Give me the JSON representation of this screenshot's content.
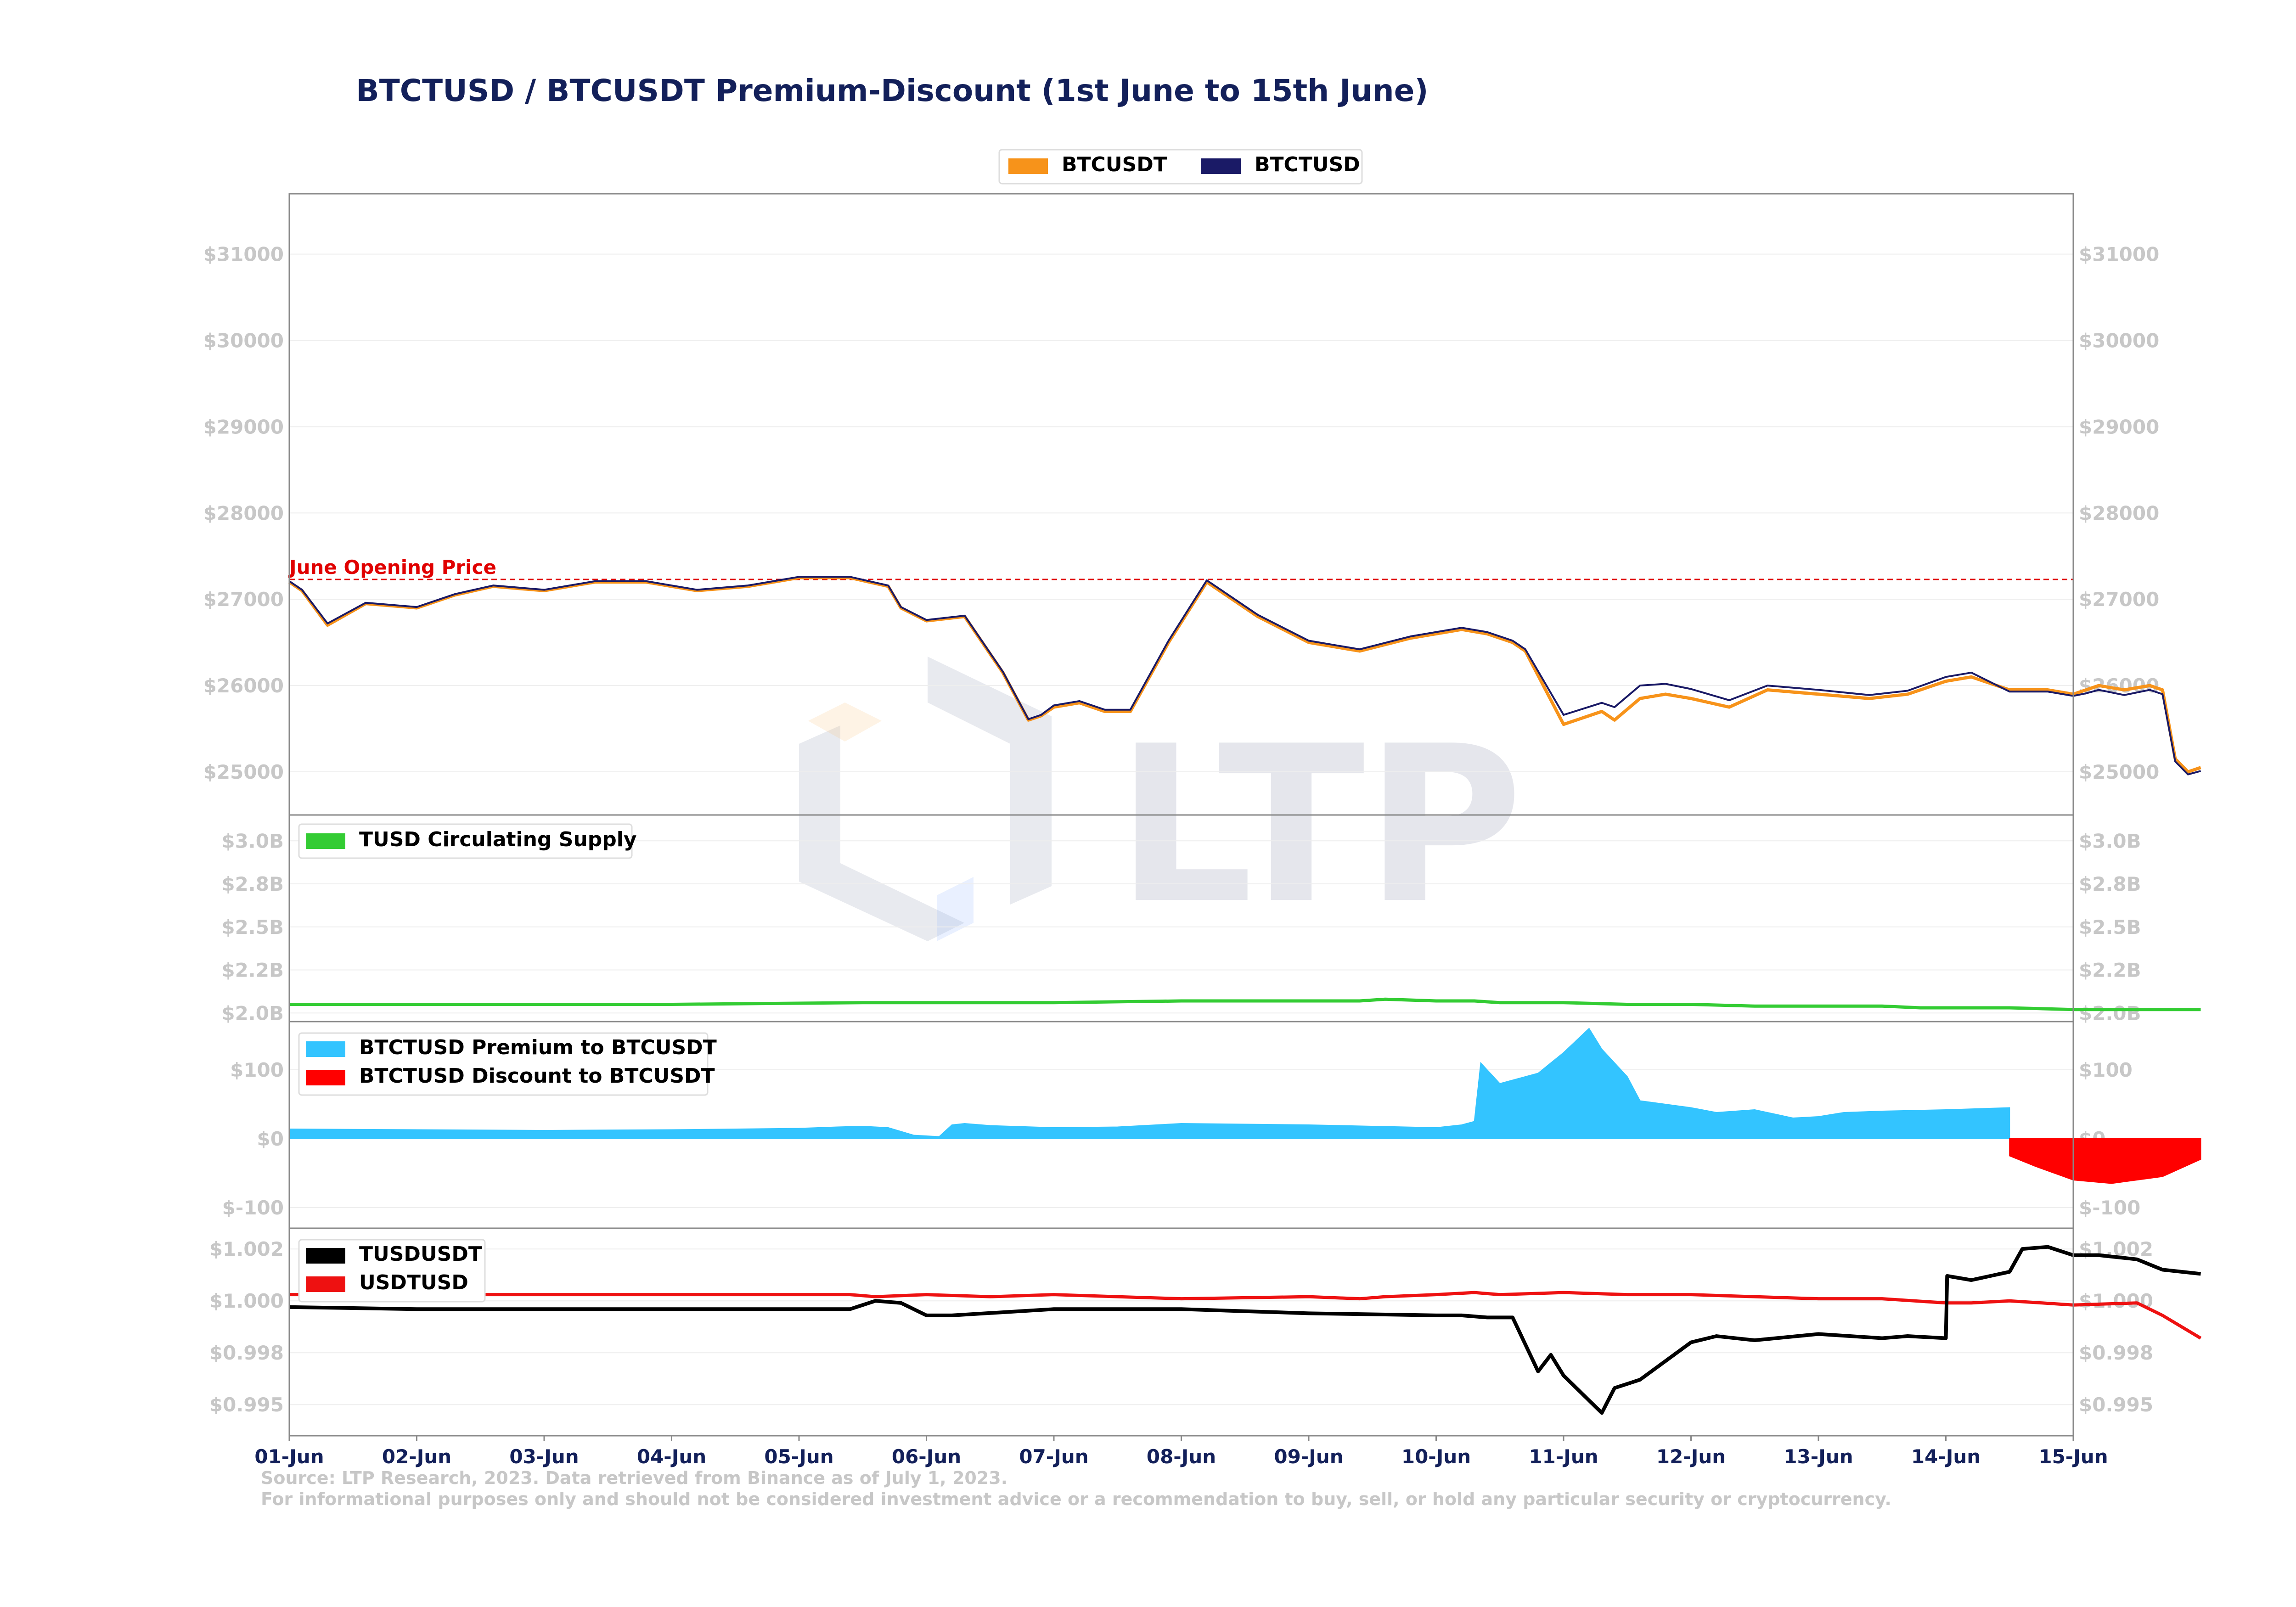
{
  "chart_data": {
    "type": "line",
    "title": "BTCTUSD / BTCUSDT Premium-Discount (1st June to 15th June)",
    "x_tick_labels": [
      "01-Jun",
      "02-Jun",
      "03-Jun",
      "04-Jun",
      "05-Jun",
      "06-Jun",
      "07-Jun",
      "08-Jun",
      "09-Jun",
      "10-Jun",
      "11-Jun",
      "12-Jun",
      "13-Jun",
      "14-Jun",
      "15-Jun"
    ],
    "xlim": [
      "2023-06-01",
      "2023-06-15"
    ],
    "colors": {
      "btcusdt": "#f7931a",
      "btctusd": "#1a1a66",
      "supply": "#33cc33",
      "premium": "#33c4ff",
      "discount": "#ff0000",
      "tusdusdt": "#000000",
      "usdtusd": "#ee1111",
      "title": "#13205a",
      "ticks": "#c7c7c7",
      "opening": "#e00000"
    },
    "watermark": "LTP",
    "panels": [
      {
        "id": "price",
        "ylim": [
          24500,
          31700
        ],
        "y_ticks": [
          25000,
          26000,
          27000,
          28000,
          29000,
          30000,
          31000
        ],
        "y_tick_labels": [
          "$25000",
          "$26000",
          "$27000",
          "$28000",
          "$29000",
          "$30000",
          "$31000"
        ],
        "legend": [
          "BTCUSDT",
          "BTCTUSD"
        ],
        "annotation": {
          "text": "June Opening Price",
          "value": 27230
        },
        "series": [
          {
            "name": "BTCUSDT",
            "x": [
              0,
              0.1,
              0.3,
              0.6,
              1.0,
              1.3,
              1.6,
              2.0,
              2.4,
              2.8,
              3.2,
              3.6,
              4.0,
              4.4,
              4.7,
              4.8,
              5.0,
              5.3,
              5.6,
              5.8,
              5.9,
              6.0,
              6.2,
              6.4,
              6.6,
              6.9,
              7.2,
              7.6,
              8.0,
              8.4,
              8.8,
              9.2,
              9.4,
              9.6,
              9.7,
              10.0,
              10.3,
              10.4,
              10.6,
              10.8,
              11.0,
              11.3,
              11.6,
              12.0,
              12.4,
              12.7,
              13.0,
              13.2,
              13.5,
              13.8,
              14.0,
              14.1,
              14.2,
              14.4,
              14.6,
              14.7,
              14.8,
              14.9,
              15.0
            ],
            "y": [
              27200,
              27100,
              26700,
              26950,
              26900,
              27050,
              27150,
              27100,
              27200,
              27200,
              27100,
              27150,
              27250,
              27250,
              27150,
              26900,
              26750,
              26800,
              26150,
              25600,
              25650,
              25750,
              25800,
              25700,
              25700,
              26500,
              27200,
              26800,
              26500,
              26400,
              26550,
              26650,
              26600,
              26500,
              26400,
              25550,
              25700,
              25600,
              25850,
              25900,
              25850,
              25750,
              25950,
              25900,
              25850,
              25900,
              26050,
              26100,
              25950,
              25950,
              25900,
              25950,
              26000,
              25950,
              26000,
              25950,
              25150,
              25000,
              25050
            ]
          },
          {
            "name": "BTCTUSD",
            "x": [
              0,
              0.1,
              0.3,
              0.6,
              1.0,
              1.3,
              1.6,
              2.0,
              2.4,
              2.8,
              3.2,
              3.6,
              4.0,
              4.4,
              4.7,
              4.8,
              5.0,
              5.3,
              5.6,
              5.8,
              5.9,
              6.0,
              6.2,
              6.4,
              6.6,
              6.9,
              7.2,
              7.6,
              8.0,
              8.4,
              8.8,
              9.2,
              9.4,
              9.6,
              9.7,
              10.0,
              10.3,
              10.4,
              10.6,
              10.8,
              11.0,
              11.3,
              11.6,
              12.0,
              12.4,
              12.7,
              13.0,
              13.2,
              13.5,
              13.8,
              14.0,
              14.1,
              14.2,
              14.4,
              14.6,
              14.7,
              14.8,
              14.9,
              15.0
            ],
            "y": [
              27210,
              27110,
              26720,
              26960,
              26910,
              27060,
              27160,
              27110,
              27210,
              27210,
              27110,
              27160,
              27260,
              27260,
              27160,
              26910,
              26760,
              26810,
              26160,
              25610,
              25660,
              25770,
              25820,
              25720,
              25720,
              26520,
              27220,
              26820,
              26520,
              26420,
              26570,
              26670,
              26620,
              26520,
              26420,
              25660,
              25800,
              25750,
              26000,
              26020,
              25960,
              25830,
              26000,
              25950,
              25890,
              25940,
              26100,
              26150,
              25930,
              25930,
              25880,
              25910,
              25950,
              25890,
              25950,
              25900,
              25120,
              24970,
              25010
            ]
          }
        ]
      },
      {
        "id": "supply",
        "ylim": [
          1.95,
          3.15
        ],
        "y_ticks": [
          2.0,
          2.25,
          2.5,
          2.75,
          3.0
        ],
        "y_tick_labels": [
          "$2.0B",
          "$2.2B",
          "$2.5B",
          "$2.8B",
          "$3.0B"
        ],
        "legend": [
          "TUSD Circulating Supply"
        ],
        "series": [
          {
            "name": "TUSD Circulating Supply",
            "x": [
              0,
              2,
              3,
              4.5,
              5,
              6,
              7,
              8,
              8.4,
              8.6,
              9,
              9.3,
              9.5,
              10,
              10.5,
              11,
              11.5,
              12,
              12.5,
              12.8,
              13,
              13.5,
              14,
              15
            ],
            "y": [
              2.05,
              2.05,
              2.05,
              2.06,
              2.06,
              2.06,
              2.07,
              2.07,
              2.07,
              2.08,
              2.07,
              2.07,
              2.06,
              2.06,
              2.05,
              2.05,
              2.04,
              2.04,
              2.04,
              2.03,
              2.03,
              2.03,
              2.02,
              2.02
            ]
          }
        ]
      },
      {
        "id": "premium",
        "ylim": [
          -130,
          170
        ],
        "y_ticks": [
          -100,
          0,
          100
        ],
        "y_tick_labels": [
          "$-100",
          "$0",
          "$100"
        ],
        "legend": [
          "BTCTUSD Premium to BTCUSDT",
          "BTCTUSD Discount to BTCUSDT"
        ],
        "series": [
          {
            "name": "BTCTUSD Premium to BTCUSDT",
            "x": [
              0,
              1,
              2,
              3,
              4,
              4.3,
              4.5,
              4.6,
              4.7,
              4.9,
              5.1,
              5.2,
              5.3,
              5.5,
              6,
              6.5,
              7,
              8,
              8.5,
              9,
              9.2,
              9.3,
              9.35,
              9.5,
              9.8,
              10,
              10.2,
              10.3,
              10.5,
              10.6,
              11,
              11.2,
              11.5,
              11.8,
              12,
              12.2,
              12.5,
              13,
              13.5
            ],
            "y": [
              14,
              13,
              12,
              13,
              15,
              17,
              18,
              17,
              16,
              5,
              3,
              20,
              22,
              19,
              16,
              17,
              22,
              20,
              18,
              16,
              20,
              25,
              110,
              80,
              95,
              125,
              160,
              130,
              90,
              55,
              45,
              38,
              42,
              30,
              32,
              38,
              40,
              42,
              45
            ]
          },
          {
            "name": "BTCTUSD Discount to BTCUSDT",
            "x": [
              13.5,
              13.7,
              14,
              14.3,
              14.5,
              14.7,
              15
            ],
            "y": [
              -25,
              -40,
              -60,
              -65,
              -60,
              -55,
              -30
            ]
          }
        ]
      },
      {
        "id": "stable",
        "ylim": [
          0.9935,
          1.0035
        ],
        "y_ticks": [
          0.995,
          0.9975,
          1.0,
          1.0025
        ],
        "y_tick_labels": [
          "$0.995",
          "$0.998",
          "$1.000",
          "$1.002"
        ],
        "legend": [
          "TUSDUSDT",
          "USDTUSD"
        ],
        "series": [
          {
            "name": "TUSDUSDT",
            "x": [
              0,
              1,
              2,
              3,
              4,
              4.4,
              4.6,
              4.8,
              5,
              5.2,
              6,
              7,
              8,
              9,
              9.1,
              9.2,
              9.4,
              9.6,
              9.8,
              9.9,
              10,
              10.3,
              10.4,
              10.6,
              11,
              11.2,
              11.5,
              12,
              12.5,
              12.7,
              13,
              13.01,
              13.2,
              13.5,
              13.6,
              13.8,
              14,
              14.2,
              14.5,
              14.7,
              15
            ],
            "y": [
              0.9997,
              0.9996,
              0.9996,
              0.9996,
              0.9996,
              0.9996,
              1.0,
              0.9999,
              0.9993,
              0.9993,
              0.9996,
              0.9996,
              0.9994,
              0.9993,
              0.9993,
              0.9993,
              0.9992,
              0.9992,
              0.9966,
              0.9974,
              0.9964,
              0.9946,
              0.9958,
              0.9962,
              0.998,
              0.9983,
              0.9981,
              0.9984,
              0.9982,
              0.9983,
              0.9982,
              1.0012,
              1.001,
              1.0014,
              1.0025,
              1.0026,
              1.0022,
              1.0022,
              1.002,
              1.0015,
              1.0013
            ]
          },
          {
            "name": "USDTUSD",
            "x": [
              0,
              1,
              2,
              3,
              4,
              4.4,
              4.6,
              5,
              5.5,
              6,
              7,
              8,
              8.4,
              8.6,
              9,
              9.3,
              9.5,
              10,
              10.5,
              11,
              11.5,
              12,
              12.5,
              13,
              13.2,
              13.5,
              14,
              14.5,
              14.7,
              15
            ],
            "y": [
              1.0003,
              1.0003,
              1.0003,
              1.0003,
              1.0003,
              1.0003,
              1.0002,
              1.0003,
              1.0002,
              1.0003,
              1.0001,
              1.0002,
              1.0001,
              1.0002,
              1.0003,
              1.0004,
              1.0003,
              1.0004,
              1.0003,
              1.0003,
              1.0002,
              1.0001,
              1.0001,
              0.9999,
              0.9999,
              1.0,
              0.9998,
              0.9999,
              0.9993,
              0.9982
            ]
          }
        ]
      }
    ],
    "footnote": [
      "Source: LTP Research, 2023. Data retrieved from Binance as of July 1, 2023.",
      "For informational purposes only and should not be considered investment advice or a recommendation to buy, sell, or hold any particular security or cryptocurrency."
    ]
  }
}
